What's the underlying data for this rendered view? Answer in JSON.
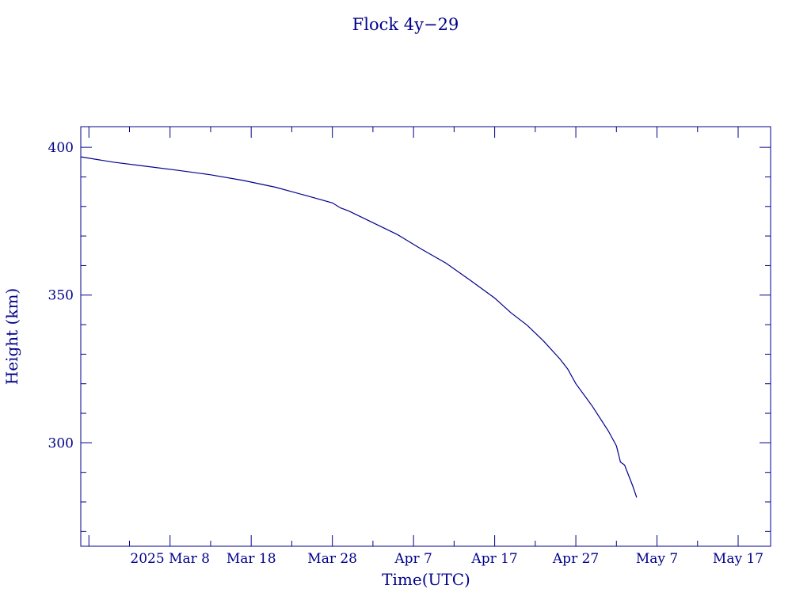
{
  "chart_data": {
    "type": "line",
    "title": "Flock 4y−29",
    "xlabel": "Time(UTC)",
    "ylabel": "Height (km)",
    "x_type": "date",
    "xlim": [
      "2025-02-25",
      "2025-05-21"
    ],
    "ylim": [
      265,
      407
    ],
    "x_ticks": [
      {
        "date": "2025-03-08",
        "label": "2025 Mar  8"
      },
      {
        "date": "2025-03-18",
        "label": "Mar 18"
      },
      {
        "date": "2025-03-28",
        "label": "Mar 28"
      },
      {
        "date": "2025-04-07",
        "label": "Apr  7"
      },
      {
        "date": "2025-04-17",
        "label": "Apr 17"
      },
      {
        "date": "2025-04-27",
        "label": "Apr 27"
      },
      {
        "date": "2025-05-07",
        "label": "May  7"
      },
      {
        "date": "2025-05-17",
        "label": "May 17"
      }
    ],
    "y_ticks": [
      {
        "value": 300,
        "label": "300"
      },
      {
        "value": 350,
        "label": "350"
      },
      {
        "value": 400,
        "label": "400"
      }
    ],
    "grid": false,
    "color": "#00008b",
    "series": [
      {
        "points": [
          {
            "x": "2025-02-25",
            "y": 396.8
          },
          {
            "x": "2025-03-01",
            "y": 395.0
          },
          {
            "x": "2025-03-05",
            "y": 393.6
          },
          {
            "x": "2025-03-09",
            "y": 392.2
          },
          {
            "x": "2025-03-13",
            "y": 390.7
          },
          {
            "x": "2025-03-17",
            "y": 388.8
          },
          {
            "x": "2025-03-21",
            "y": 386.5
          },
          {
            "x": "2025-03-25",
            "y": 383.5
          },
          {
            "x": "2025-03-28",
            "y": 381.2
          },
          {
            "x": "2025-03-29",
            "y": 379.5
          },
          {
            "x": "2025-03-30",
            "y": 378.5
          },
          {
            "x": "2025-04-02",
            "y": 374.5
          },
          {
            "x": "2025-04-05",
            "y": 370.5
          },
          {
            "x": "2025-04-08",
            "y": 365.5
          },
          {
            "x": "2025-04-11",
            "y": 360.8
          },
          {
            "x": "2025-04-14",
            "y": 355.0
          },
          {
            "x": "2025-04-17",
            "y": 349.0
          },
          {
            "x": "2025-04-19",
            "y": 344.0
          },
          {
            "x": "2025-04-21",
            "y": 339.8
          },
          {
            "x": "2025-04-23",
            "y": 334.5
          },
          {
            "x": "2025-04-25",
            "y": 328.5
          },
          {
            "x": "2025-04-26",
            "y": 325.0
          },
          {
            "x": "2025-04-27",
            "y": 320.0
          },
          {
            "x": "2025-04-29",
            "y": 312.5
          },
          {
            "x": "2025-05-01",
            "y": 304.0
          },
          {
            "x": "2025-05-02",
            "y": 299.0
          },
          {
            "x": "2025-05-02T12:00",
            "y": 293.5
          },
          {
            "x": "2025-05-03",
            "y": 292.5
          },
          {
            "x": "2025-05-04",
            "y": 285.5
          },
          {
            "x": "2025-05-04T12:00",
            "y": 281.5
          }
        ]
      }
    ]
  }
}
